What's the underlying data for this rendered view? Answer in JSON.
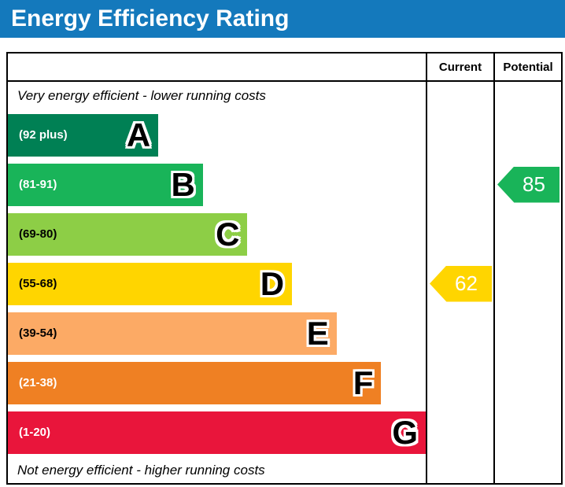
{
  "header": {
    "title": "Energy Efficiency Rating",
    "bar_color": "#1479bc"
  },
  "table": {
    "current_label": "Current",
    "potential_label": "Potential",
    "top_note": "Very energy efficient - lower running costs",
    "bottom_note": "Not energy efficient - higher running costs"
  },
  "chart_data": {
    "type": "bar",
    "title": "Energy Efficiency Rating",
    "categories": [
      "A",
      "B",
      "C",
      "D",
      "E",
      "F",
      "G"
    ],
    "bands": [
      {
        "letter": "A",
        "range_label": "(92 plus)",
        "color": "#008054",
        "label_color": "#ffffff"
      },
      {
        "letter": "B",
        "range_label": "(81-91)",
        "color": "#19b459",
        "label_color": "#ffffff"
      },
      {
        "letter": "C",
        "range_label": "(69-80)",
        "color": "#8dce46",
        "label_color": "#000000"
      },
      {
        "letter": "D",
        "range_label": "(55-68)",
        "color": "#ffd500",
        "label_color": "#000000"
      },
      {
        "letter": "E",
        "range_label": "(39-54)",
        "color": "#fcaa65",
        "label_color": "#000000"
      },
      {
        "letter": "F",
        "range_label": "(21-38)",
        "color": "#ef8023",
        "label_color": "#ffffff"
      },
      {
        "letter": "G",
        "range_label": "(1-20)",
        "color": "#e9153b",
        "label_color": "#ffffff"
      }
    ],
    "current": {
      "value": 62,
      "band": "D",
      "color": "#ffd500"
    },
    "potential": {
      "value": 85,
      "band": "B",
      "color": "#19b459"
    }
  }
}
